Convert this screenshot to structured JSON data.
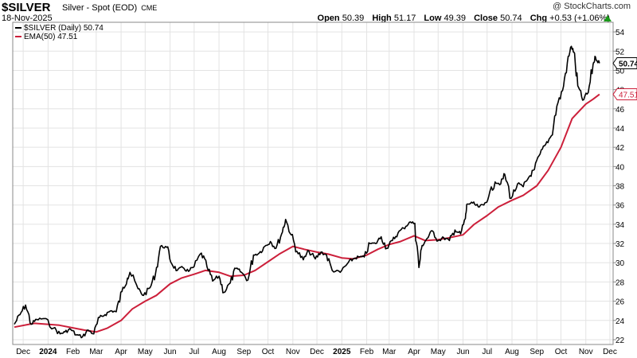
{
  "header": {
    "symbol": "$SILVER",
    "description": "Silver - Spot (EOD)",
    "exchange": "CME",
    "copyright": "@ StockCharts.com",
    "date": "18-Nov-2025",
    "open_label": "Open",
    "open": "50.39",
    "high_label": "High",
    "high": "51.17",
    "low_label": "Low",
    "low": "49.39",
    "close_label": "Close",
    "close": "50.74",
    "chg_label": "Chg",
    "chg": "+0.53 (+1.06%)",
    "chg_direction": "up-arrow-icon"
  },
  "legend": [
    {
      "text": "$SILVER (Daily) 50.74",
      "color": "#000000"
    },
    {
      "text": "EMA(50) 47.51",
      "color": "#cc1f3a"
    }
  ],
  "price_tags": [
    {
      "text": "50.74",
      "value": 50.74,
      "color": "#000000",
      "bold": true
    },
    {
      "text": "47.51",
      "value": 47.51,
      "color": "#cc1f3a",
      "bold": false
    }
  ],
  "chart_data": {
    "type": "line",
    "x_axis_labels": [
      {
        "label": "Dec",
        "date": "2023-12-01",
        "bold": false
      },
      {
        "label": "2024",
        "date": "2024-01-01",
        "bold": true
      },
      {
        "label": "Feb",
        "date": "2024-02-01",
        "bold": false
      },
      {
        "label": "Mar",
        "date": "2024-03-01",
        "bold": false
      },
      {
        "label": "Apr",
        "date": "2024-04-01",
        "bold": false
      },
      {
        "label": "May",
        "date": "2024-05-01",
        "bold": false
      },
      {
        "label": "Jun",
        "date": "2024-06-01",
        "bold": false
      },
      {
        "label": "Jul",
        "date": "2024-07-01",
        "bold": false
      },
      {
        "label": "Aug",
        "date": "2024-08-01",
        "bold": false
      },
      {
        "label": "Sep",
        "date": "2024-09-01",
        "bold": false
      },
      {
        "label": "Oct",
        "date": "2024-10-01",
        "bold": false
      },
      {
        "label": "Nov",
        "date": "2024-11-01",
        "bold": false
      },
      {
        "label": "Dec",
        "date": "2024-12-01",
        "bold": false
      },
      {
        "label": "2025",
        "date": "2025-01-01",
        "bold": true
      },
      {
        "label": "Feb",
        "date": "2025-02-01",
        "bold": false
      },
      {
        "label": "Mar",
        "date": "2025-03-01",
        "bold": false
      },
      {
        "label": "Apr",
        "date": "2025-04-01",
        "bold": false
      },
      {
        "label": "May",
        "date": "2025-05-01",
        "bold": false
      },
      {
        "label": "Jun",
        "date": "2025-06-01",
        "bold": false
      },
      {
        "label": "Jul",
        "date": "2025-07-01",
        "bold": false
      },
      {
        "label": "Aug",
        "date": "2025-08-01",
        "bold": false
      },
      {
        "label": "Sep",
        "date": "2025-09-01",
        "bold": false
      },
      {
        "label": "Oct",
        "date": "2025-10-01",
        "bold": false
      },
      {
        "label": "Nov",
        "date": "2025-11-01",
        "bold": false
      },
      {
        "label": "Dec",
        "date": "2025-12-01",
        "bold": false
      }
    ],
    "y_ticks": [
      22,
      24,
      26,
      28,
      30,
      32,
      34,
      36,
      38,
      40,
      42,
      44,
      46,
      48,
      50,
      52,
      54
    ],
    "y_range": [
      21.5,
      55
    ],
    "x_range": [
      "2023-11-18",
      "2025-12-05"
    ],
    "grid": true,
    "legend_position": "top-left",
    "series": [
      {
        "name": "$SILVER (Daily)",
        "color": "#000000",
        "points": [
          [
            "2023-11-20",
            23.6
          ],
          [
            "2023-11-27",
            24.6
          ],
          [
            "2023-12-04",
            25.6
          ],
          [
            "2023-12-11",
            23.6
          ],
          [
            "2023-12-18",
            24.1
          ],
          [
            "2023-12-27",
            24.2
          ],
          [
            "2024-01-08",
            23.2
          ],
          [
            "2024-01-16",
            22.6
          ],
          [
            "2024-01-22",
            22.8
          ],
          [
            "2024-01-29",
            23.1
          ],
          [
            "2024-02-05",
            22.5
          ],
          [
            "2024-02-13",
            22.3
          ],
          [
            "2024-02-20",
            23.0
          ],
          [
            "2024-02-27",
            22.6
          ],
          [
            "2024-03-05",
            24.3
          ],
          [
            "2024-03-12",
            24.6
          ],
          [
            "2024-03-19",
            25.0
          ],
          [
            "2024-03-26",
            24.9
          ],
          [
            "2024-04-02",
            27.0
          ],
          [
            "2024-04-09",
            28.4
          ],
          [
            "2024-04-12",
            29.0
          ],
          [
            "2024-04-22",
            27.3
          ],
          [
            "2024-04-29",
            26.6
          ],
          [
            "2024-05-07",
            27.4
          ],
          [
            "2024-05-14",
            28.9
          ],
          [
            "2024-05-20",
            31.7
          ],
          [
            "2024-05-28",
            31.6
          ],
          [
            "2024-06-03",
            29.9
          ],
          [
            "2024-06-10",
            29.2
          ],
          [
            "2024-06-17",
            29.5
          ],
          [
            "2024-06-24",
            29.1
          ],
          [
            "2024-07-01",
            29.6
          ],
          [
            "2024-07-10",
            31.0
          ],
          [
            "2024-07-17",
            29.6
          ],
          [
            "2024-07-24",
            28.1
          ],
          [
            "2024-08-01",
            28.6
          ],
          [
            "2024-08-07",
            26.9
          ],
          [
            "2024-08-15",
            27.9
          ],
          [
            "2024-08-22",
            29.4
          ],
          [
            "2024-08-29",
            29.0
          ],
          [
            "2024-09-06",
            28.2
          ],
          [
            "2024-09-13",
            30.8
          ],
          [
            "2024-09-20",
            31.0
          ],
          [
            "2024-09-27",
            31.7
          ],
          [
            "2024-10-04",
            32.2
          ],
          [
            "2024-10-11",
            31.5
          ],
          [
            "2024-10-18",
            33.0
          ],
          [
            "2024-10-23",
            34.5
          ],
          [
            "2024-10-30",
            32.9
          ],
          [
            "2024-11-06",
            31.2
          ],
          [
            "2024-11-14",
            30.3
          ],
          [
            "2024-11-21",
            31.2
          ],
          [
            "2024-11-29",
            30.4
          ],
          [
            "2024-12-06",
            31.1
          ],
          [
            "2024-12-13",
            30.8
          ],
          [
            "2024-12-20",
            29.2
          ],
          [
            "2024-12-30",
            29.0
          ],
          [
            "2025-01-08",
            29.9
          ],
          [
            "2025-01-15",
            30.4
          ],
          [
            "2025-01-22",
            30.6
          ],
          [
            "2025-01-29",
            30.6
          ],
          [
            "2025-02-05",
            32.0
          ],
          [
            "2025-02-12",
            32.0
          ],
          [
            "2025-02-19",
            32.7
          ],
          [
            "2025-02-26",
            31.5
          ],
          [
            "2025-03-05",
            32.3
          ],
          [
            "2025-03-12",
            33.1
          ],
          [
            "2025-03-19",
            33.6
          ],
          [
            "2025-03-26",
            34.2
          ],
          [
            "2025-04-02",
            34.1
          ],
          [
            "2025-04-07",
            29.5
          ],
          [
            "2025-04-11",
            31.8
          ],
          [
            "2025-04-17",
            32.5
          ],
          [
            "2025-04-24",
            33.3
          ],
          [
            "2025-05-01",
            32.3
          ],
          [
            "2025-05-08",
            32.6
          ],
          [
            "2025-05-15",
            32.3
          ],
          [
            "2025-05-22",
            33.4
          ],
          [
            "2025-05-29",
            33.0
          ],
          [
            "2025-06-04",
            34.6
          ],
          [
            "2025-06-06",
            36.1
          ],
          [
            "2025-06-13",
            36.2
          ],
          [
            "2025-06-20",
            35.8
          ],
          [
            "2025-06-27",
            36.0
          ],
          [
            "2025-07-03",
            36.9
          ],
          [
            "2025-07-11",
            38.4
          ],
          [
            "2025-07-18",
            38.2
          ],
          [
            "2025-07-23",
            39.2
          ],
          [
            "2025-07-31",
            36.7
          ],
          [
            "2025-08-08",
            38.2
          ],
          [
            "2025-08-15",
            37.9
          ],
          [
            "2025-08-22",
            38.9
          ],
          [
            "2025-08-29",
            39.7
          ],
          [
            "2025-09-05",
            41.3
          ],
          [
            "2025-09-12",
            42.3
          ],
          [
            "2025-09-19",
            43.2
          ],
          [
            "2025-09-26",
            46.3
          ],
          [
            "2025-10-03",
            47.9
          ],
          [
            "2025-10-09",
            50.8
          ],
          [
            "2025-10-14",
            52.5
          ],
          [
            "2025-10-17",
            51.9
          ],
          [
            "2025-10-22",
            48.4
          ],
          [
            "2025-10-28",
            46.9
          ],
          [
            "2025-11-04",
            47.7
          ],
          [
            "2025-11-10",
            50.6
          ],
          [
            "2025-11-13",
            51.4
          ],
          [
            "2025-11-18",
            50.74
          ]
        ]
      },
      {
        "name": "EMA(50)",
        "color": "#cc1f3a",
        "points": [
          [
            "2023-11-20",
            23.3
          ],
          [
            "2023-12-15",
            23.7
          ],
          [
            "2024-01-15",
            23.5
          ],
          [
            "2024-02-15",
            23.0
          ],
          [
            "2024-03-01",
            22.8
          ],
          [
            "2024-03-15",
            23.2
          ],
          [
            "2024-04-01",
            24.0
          ],
          [
            "2024-04-15",
            25.2
          ],
          [
            "2024-05-01",
            26.0
          ],
          [
            "2024-05-15",
            26.6
          ],
          [
            "2024-06-01",
            27.8
          ],
          [
            "2024-06-15",
            28.4
          ],
          [
            "2024-07-01",
            28.8
          ],
          [
            "2024-07-15",
            29.2
          ],
          [
            "2024-08-01",
            29.0
          ],
          [
            "2024-08-15",
            28.6
          ],
          [
            "2024-09-01",
            28.7
          ],
          [
            "2024-09-15",
            29.2
          ],
          [
            "2024-10-01",
            30.1
          ],
          [
            "2024-10-15",
            30.9
          ],
          [
            "2024-11-01",
            31.7
          ],
          [
            "2024-11-15",
            31.4
          ],
          [
            "2024-12-01",
            31.1
          ],
          [
            "2024-12-15",
            30.9
          ],
          [
            "2025-01-01",
            30.5
          ],
          [
            "2025-01-15",
            30.4
          ],
          [
            "2025-02-01",
            30.8
          ],
          [
            "2025-02-15",
            31.4
          ],
          [
            "2025-03-01",
            31.9
          ],
          [
            "2025-03-15",
            32.2
          ],
          [
            "2025-04-01",
            32.8
          ],
          [
            "2025-04-15",
            32.3
          ],
          [
            "2025-05-01",
            32.4
          ],
          [
            "2025-05-15",
            32.6
          ],
          [
            "2025-06-01",
            32.9
          ],
          [
            "2025-06-15",
            34.0
          ],
          [
            "2025-07-01",
            34.9
          ],
          [
            "2025-07-15",
            35.8
          ],
          [
            "2025-08-01",
            36.5
          ],
          [
            "2025-08-15",
            37.0
          ],
          [
            "2025-09-01",
            38.0
          ],
          [
            "2025-09-15",
            39.6
          ],
          [
            "2025-10-01",
            42.0
          ],
          [
            "2025-10-15",
            45.0
          ],
          [
            "2025-11-01",
            46.5
          ],
          [
            "2025-11-10",
            47.0
          ],
          [
            "2025-11-18",
            47.51
          ]
        ]
      }
    ]
  }
}
